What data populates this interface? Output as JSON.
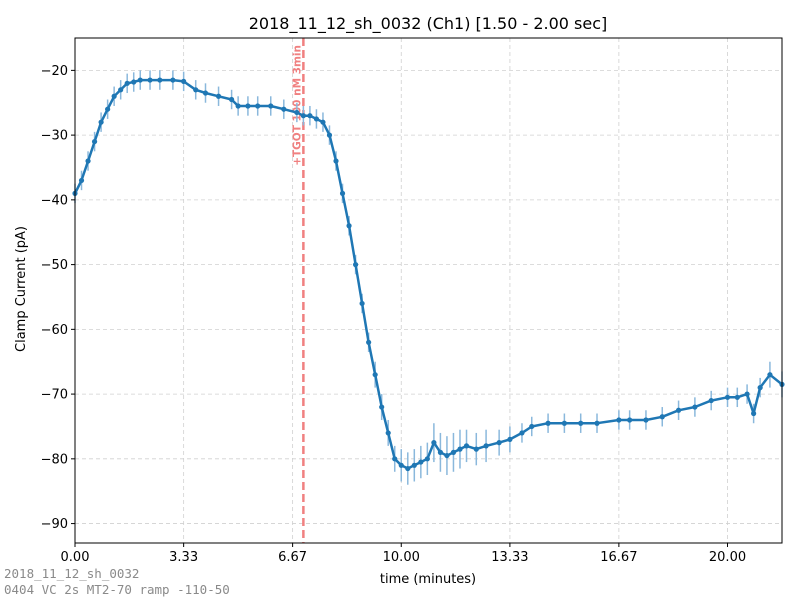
{
  "footer": {
    "line1": "2018_11_12_sh_0032",
    "line2": "0404 VC 2s MT2-70 ramp -110-50"
  },
  "chart_data": {
    "type": "line",
    "title": "2018_11_12_sh_0032 (Ch1) [1.50 - 2.00 sec]",
    "xlabel": "time (minutes)",
    "ylabel": "Clamp Current (pA)",
    "xlim": [
      0,
      21.67
    ],
    "ylim": [
      -93,
      -15
    ],
    "xticks": [
      0,
      3.33,
      6.67,
      10.0,
      13.33,
      16.67,
      20.0
    ],
    "xtick_labels": [
      "0.00",
      "3.33",
      "6.67",
      "10.00",
      "13.33",
      "16.67",
      "20.00"
    ],
    "yticks": [
      -90,
      -80,
      -70,
      -60,
      -50,
      -40,
      -30,
      -20
    ],
    "ytick_labels": [
      "−90",
      "−80",
      "−70",
      "−60",
      "−50",
      "−40",
      "−30",
      "−20"
    ],
    "grid": true,
    "line_color": "#1f77b4",
    "errorbar_color": "#8ab8dc",
    "annotation": {
      "x": 7.0,
      "label": "+TGOT 100 nM 3min",
      "color": "#f08080"
    },
    "series": [
      {
        "x": [
          0.0,
          0.2,
          0.4,
          0.6,
          0.8,
          1.0,
          1.2,
          1.4,
          1.6,
          1.8,
          2.0,
          2.3,
          2.6,
          3.0,
          3.33,
          3.7,
          4.0,
          4.4,
          4.8,
          5.0,
          5.3,
          5.6,
          6.0,
          6.4,
          6.8,
          7.0,
          7.2,
          7.4,
          7.6,
          7.8,
          8.0,
          8.2,
          8.4,
          8.6,
          8.8,
          9.0,
          9.2,
          9.4,
          9.6,
          9.8,
          10.0,
          10.2,
          10.4,
          10.6,
          10.8,
          11.0,
          11.2,
          11.4,
          11.6,
          11.8,
          12.0,
          12.3,
          12.6,
          13.0,
          13.33,
          13.7,
          14.0,
          14.5,
          15.0,
          15.5,
          16.0,
          16.67,
          17.0,
          17.5,
          18.0,
          18.5,
          19.0,
          19.5,
          20.0,
          20.3,
          20.6,
          20.8,
          21.0,
          21.3,
          21.67
        ],
        "y": [
          -39,
          -37,
          -34,
          -31,
          -28,
          -26,
          -24,
          -23,
          -22,
          -21.8,
          -21.5,
          -21.5,
          -21.5,
          -21.5,
          -21.7,
          -23,
          -23.5,
          -24,
          -24.5,
          -25.5,
          -25.5,
          -25.5,
          -25.5,
          -26,
          -26.5,
          -27,
          -27,
          -27.5,
          -28,
          -30,
          -34,
          -39,
          -44,
          -50,
          -56,
          -62,
          -67,
          -72,
          -76,
          -80,
          -81,
          -81.5,
          -81,
          -80.5,
          -80,
          -77.5,
          -79,
          -79.5,
          -79,
          -78.5,
          -78,
          -78.5,
          -78,
          -77.5,
          -77,
          -76,
          -75,
          -74.5,
          -74.5,
          -74.5,
          -74.5,
          -74,
          -74,
          -74,
          -73.5,
          -72.5,
          -72,
          -71,
          -70.5,
          -70.5,
          -70,
          -73,
          -69,
          -67,
          -68.5
        ],
        "err": [
          1.5,
          1.5,
          1.5,
          1.5,
          1.5,
          1.5,
          1.5,
          1.5,
          1.5,
          1.5,
          1.5,
          1.5,
          1.5,
          1.5,
          1.5,
          1.5,
          1.5,
          1.5,
          1.5,
          1.5,
          1.5,
          1.5,
          1.5,
          1.5,
          1.5,
          1.5,
          1.5,
          1.5,
          1.5,
          1.5,
          1.5,
          1.5,
          1.5,
          1.5,
          1.5,
          1.5,
          2.0,
          2.0,
          2.0,
          2.0,
          2.5,
          2.5,
          2.5,
          2.5,
          2.5,
          3.0,
          3.0,
          3.0,
          3.0,
          3.0,
          2.5,
          2.5,
          2.5,
          2.0,
          2.0,
          1.5,
          1.5,
          1.5,
          1.5,
          1.5,
          1.5,
          1.5,
          1.5,
          1.5,
          1.5,
          1.5,
          1.5,
          1.5,
          1.5,
          1.5,
          1.5,
          1.5,
          1.5,
          2.0,
          2.0
        ]
      }
    ]
  }
}
